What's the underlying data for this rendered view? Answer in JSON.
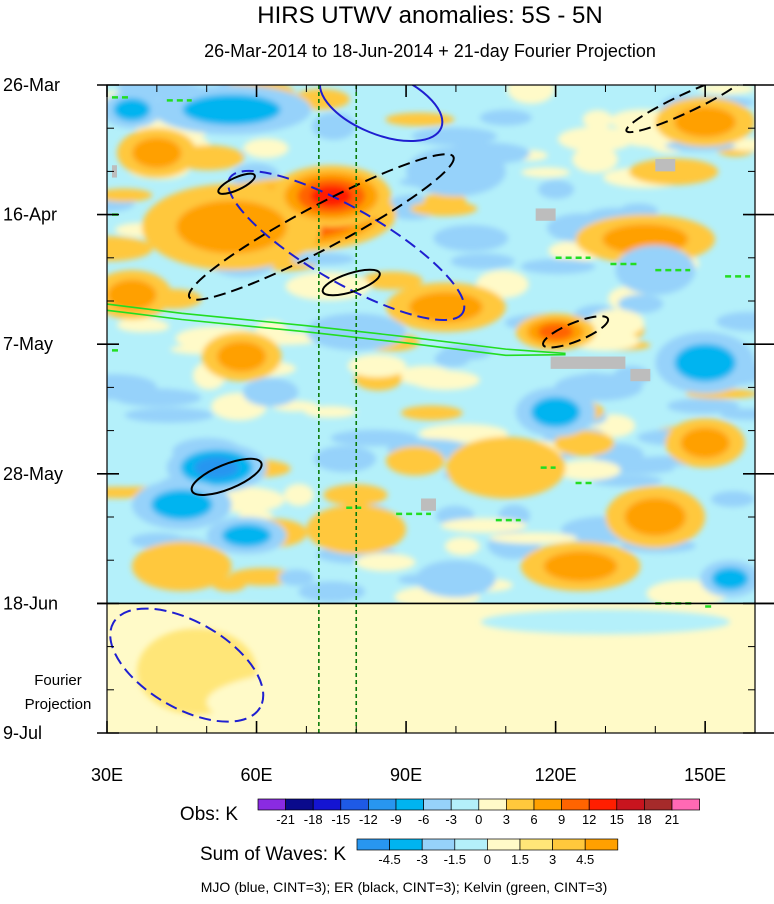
{
  "chart_data": {
    "type": "heatmap",
    "title": "HIRS UTWV anomalies: 5S - 5N",
    "subtitle": "26-Mar-2014 to 18-Jun-2014 + 21-day Fourier Projection",
    "x_axis": {
      "range": [
        30,
        160
      ],
      "ticks": [
        {
          "value": 30,
          "label": "30E"
        },
        {
          "value": 60,
          "label": "60E"
        },
        {
          "value": 90,
          "label": "90E"
        },
        {
          "value": 120,
          "label": "120E"
        },
        {
          "value": 150,
          "label": "150E"
        }
      ]
    },
    "y_axis": {
      "range_days": [
        0,
        105
      ],
      "direction": "time increases downward",
      "ticks": [
        {
          "day": 0,
          "label": "26-Mar"
        },
        {
          "day": 21,
          "label": "16-Apr"
        },
        {
          "day": 42,
          "label": "7-May"
        },
        {
          "day": 63,
          "label": "28-May"
        },
        {
          "day": 84,
          "label": "18-Jun"
        },
        {
          "day": 105,
          "label": "9-Jul"
        }
      ],
      "projection_label": [
        "Fourier",
        "Projection"
      ]
    },
    "observation_end_day": 84,
    "reference_longitudes": [
      72.5,
      80
    ],
    "obs_legend": {
      "title": "Obs: K",
      "levels": [
        "-21",
        "-18",
        "-15",
        "-12",
        "-9",
        "-6",
        "-3",
        "0",
        "3",
        "6",
        "9",
        "12",
        "15",
        "18",
        "21"
      ],
      "colors": [
        "#8a2be2",
        "#0a0a8c",
        "#1414d2",
        "#1e5ae6",
        "#2896f0",
        "#00b4f0",
        "#96d2fa",
        "#b4f0fa",
        "#fffac8",
        "#ffc83c",
        "#ffa000",
        "#ff6400",
        "#ff1e00",
        "#c8141e",
        "#a52a2a",
        "#ff69b4"
      ]
    },
    "waves_legend": {
      "title": "Sum of Waves: K",
      "levels": [
        "-4.5",
        "-3",
        "-1.5",
        "0",
        "1.5",
        "3",
        "4.5"
      ],
      "colors": [
        "#2896f0",
        "#00b4f0",
        "#96d2fa",
        "#b4f0fa",
        "#fffac8",
        "#ffe678",
        "#ffc83c",
        "#ffa000"
      ]
    },
    "contour_note": "MJO (blue, CINT=3); ER (black, CINT=3); Kelvin (green, CINT=3)",
    "fields": {
      "projection_base": "#fffac8",
      "warm_blobs": [
        {
          "lon": 68,
          "day": 21,
          "rl": 20,
          "rd": 6,
          "v": 15
        },
        {
          "lon": 55,
          "day": 23,
          "rl": 18,
          "rd": 7,
          "v": 6
        },
        {
          "lon": 75,
          "day": 18,
          "rl": 12,
          "rd": 5,
          "v": 12
        },
        {
          "lon": 40,
          "day": 11,
          "rl": 8,
          "rd": 4,
          "v": 6
        },
        {
          "lon": 120,
          "day": 40,
          "rl": 8,
          "rd": 3,
          "v": 9
        },
        {
          "lon": 98,
          "day": 36,
          "rl": 12,
          "rd": 4,
          "v": 6
        },
        {
          "lon": 57,
          "day": 44,
          "rl": 8,
          "rd": 4,
          "v": 6
        },
        {
          "lon": 60,
          "day": 2,
          "rl": 8,
          "rd": 3,
          "v": 6
        },
        {
          "lon": 150,
          "day": 6,
          "rl": 10,
          "rd": 4,
          "v": 6
        },
        {
          "lon": 35,
          "day": 34,
          "rl": 8,
          "rd": 4,
          "v": 6
        },
        {
          "lon": 140,
          "day": 70,
          "rl": 10,
          "rd": 5,
          "v": 6
        },
        {
          "lon": 150,
          "day": 58,
          "rl": 8,
          "rd": 4,
          "v": 6
        },
        {
          "lon": 110,
          "day": 62,
          "rl": 12,
          "rd": 5,
          "v": 3
        },
        {
          "lon": 80,
          "day": 72,
          "rl": 10,
          "rd": 4,
          "v": 3
        },
        {
          "lon": 138,
          "day": 25,
          "rl": 14,
          "rd": 4,
          "v": 6
        },
        {
          "lon": 125,
          "day": 78,
          "rl": 12,
          "rd": 4,
          "v": 6
        },
        {
          "lon": 45,
          "day": 78,
          "rl": 10,
          "rd": 4,
          "v": 3
        }
      ],
      "cool_blobs": [
        {
          "lon": 55,
          "day": 4,
          "rl": 16,
          "rd": 4,
          "v": -6
        },
        {
          "lon": 52,
          "day": 62,
          "rl": 10,
          "rd": 4,
          "v": -9
        },
        {
          "lon": 45,
          "day": 68,
          "rl": 10,
          "rd": 4,
          "v": -6
        },
        {
          "lon": 58,
          "day": 73,
          "rl": 8,
          "rd": 3,
          "v": -6
        },
        {
          "lon": 120,
          "day": 53,
          "rl": 8,
          "rd": 4,
          "v": -6
        },
        {
          "lon": 80,
          "day": 40,
          "rl": 10,
          "rd": 3,
          "v": -3
        },
        {
          "lon": 150,
          "day": 45,
          "rl": 10,
          "rd": 5,
          "v": -6
        },
        {
          "lon": 100,
          "day": 14,
          "rl": 10,
          "rd": 4,
          "v": -3
        },
        {
          "lon": 140,
          "day": 30,
          "rl": 8,
          "rd": 4,
          "v": -3
        },
        {
          "lon": 100,
          "day": 80,
          "rl": 8,
          "rd": 3,
          "v": -3
        },
        {
          "lon": 155,
          "day": 80,
          "rl": 6,
          "rd": 3,
          "v": -6
        },
        {
          "lon": 35,
          "day": 4,
          "rl": 6,
          "rd": 3,
          "v": -6
        }
      ],
      "projection_blobs": [
        {
          "lon": 48,
          "day": 95,
          "rl": 12,
          "rd": 7,
          "v": 1.5
        },
        {
          "lon": 50,
          "day": 86,
          "rl": 20,
          "rd": 2,
          "v": 0.8
        },
        {
          "lon": 85,
          "day": 100,
          "rl": 35,
          "rd": 6,
          "v": 0.6
        },
        {
          "lon": 130,
          "day": 87,
          "rl": 25,
          "rd": 2,
          "v": -0.5
        }
      ],
      "missing_patches": [
        {
          "lon": [
            31,
            32
          ],
          "day": [
            13,
            15
          ]
        },
        {
          "lon": [
            116,
            120
          ],
          "day": [
            20,
            22
          ]
        },
        {
          "lon": [
            140,
            144
          ],
          "day": [
            12,
            14
          ]
        },
        {
          "lon": [
            119,
            134
          ],
          "day": [
            44,
            46
          ]
        },
        {
          "lon": [
            135,
            139
          ],
          "day": [
            46,
            48
          ]
        },
        {
          "lon": [
            93,
            96
          ],
          "day": [
            67,
            69
          ]
        }
      ]
    },
    "contours": {
      "mjo": [
        {
          "style": "solid",
          "cx": 85,
          "cy": 3,
          "rx": 13,
          "ry": 5,
          "rot": 22
        },
        {
          "style": "dashed",
          "cx": 78,
          "cy": 26,
          "rx": 27,
          "ry": 6,
          "rot": 30
        },
        {
          "style": "dashed",
          "cx": 46,
          "cy": 94,
          "rx": 17,
          "ry": 7,
          "rot": 30
        }
      ],
      "er": [
        {
          "style": "dashed",
          "cx": 73,
          "cy": 23,
          "rx": 30,
          "ry": 3.5,
          "rot": -28
        },
        {
          "style": "solid",
          "cx": 56,
          "cy": 16,
          "rx": 4,
          "ry": 1,
          "rot": -25
        },
        {
          "style": "solid",
          "cx": 79,
          "cy": 32,
          "rx": 6,
          "ry": 1.5,
          "rot": -18
        },
        {
          "style": "solid",
          "cx": 54,
          "cy": 63.5,
          "rx": 7.5,
          "ry": 2,
          "rot": -22
        },
        {
          "style": "dashed",
          "cx": 124,
          "cy": 40,
          "rx": 7,
          "ry": 1.5,
          "rot": -22
        },
        {
          "style": "dashed",
          "cx": 146,
          "cy": 3,
          "rx": 13,
          "ry": 1.5,
          "rot": -25
        }
      ],
      "kelvin_lines": [
        {
          "points": [
            [
              30,
              35.5
            ],
            [
              45,
              37
            ],
            [
              70,
              39
            ],
            [
              90,
              40.8
            ],
            [
              110,
              42.8
            ],
            [
              122,
              43.5
            ]
          ]
        },
        {
          "points": [
            [
              30,
              36.5
            ],
            [
              45,
              38
            ],
            [
              70,
              40
            ],
            [
              90,
              41.8
            ],
            [
              110,
              43.8
            ],
            [
              122,
              43.7
            ]
          ]
        }
      ],
      "kelvin_dashes": [
        {
          "lon": [
            31,
            35
          ],
          "day": 2
        },
        {
          "lon": [
            42,
            47
          ],
          "day": 2.5
        },
        {
          "lon": [
            31,
            33
          ],
          "day": 21
        },
        {
          "lon": [
            31,
            33
          ],
          "day": 43
        },
        {
          "lon": [
            120,
            127
          ],
          "day": 28
        },
        {
          "lon": [
            131,
            137
          ],
          "day": 29
        },
        {
          "lon": [
            140,
            147
          ],
          "day": 30
        },
        {
          "lon": [
            154,
            159
          ],
          "day": 31
        },
        {
          "lon": [
            124,
            128
          ],
          "day": 64.5
        },
        {
          "lon": [
            117,
            120
          ],
          "day": 62
        },
        {
          "lon": [
            88,
            95
          ],
          "day": 69.5
        },
        {
          "lon": [
            108,
            113
          ],
          "day": 70.5
        },
        {
          "lon": [
            78,
            81
          ],
          "day": 68.5
        },
        {
          "lon": [
            140,
            148
          ],
          "day": 84
        },
        {
          "lon": [
            150,
            152
          ],
          "day": 84.5
        }
      ]
    }
  }
}
